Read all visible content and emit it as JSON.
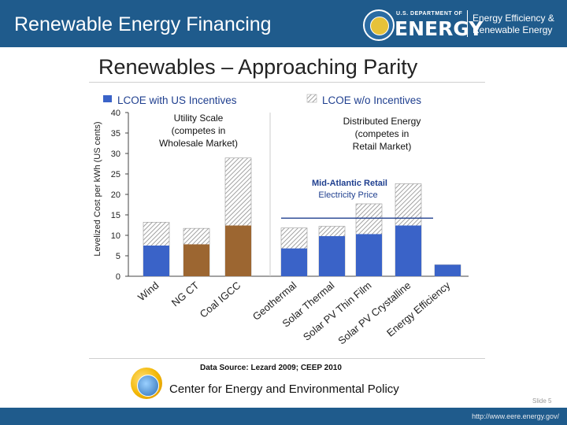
{
  "header": {
    "title": "Renewable Energy Financing",
    "doe_small": "U.S. DEPARTMENT OF",
    "doe_big": "ENERGY",
    "eere_line1": "Energy Efficiency &",
    "eere_line2": "Renewable Energy"
  },
  "slide": {
    "title": "Renewables – Approaching Parity",
    "source": "Data Source: Lezard 2009; CEEP 2010",
    "center": "Center for Energy and Environmental Policy",
    "slide_number": "Slide 5"
  },
  "footer": {
    "url": "http://www.eere.energy.gov/"
  },
  "colors": {
    "header_bg": "#1f5b8c",
    "blue": "#3a63c8",
    "brown": "#9c6631",
    "hatch": "#8a8a8a"
  },
  "chart_data": {
    "type": "bar",
    "ylabel": "Levelized Cost per kWh (US cents)",
    "ylim": [
      0,
      40
    ],
    "yticks": [
      0,
      5,
      10,
      15,
      20,
      25,
      30,
      35,
      40
    ],
    "legend": [
      {
        "name": "LCOE with US Incentives",
        "style": "solid"
      },
      {
        "name": "LCOE w/o Incentives",
        "style": "hatched"
      }
    ],
    "categories": [
      "Wind",
      "NG CT",
      "Coal IGCC",
      "Geothermal",
      "Solar Thermal",
      "Solar PV Thin Film",
      "Solar PV Crystalline",
      "Energy Efficiency"
    ],
    "series": [
      {
        "name": "LCOE with US Incentives",
        "values": [
          7.5,
          7.8,
          12.4,
          6.8,
          9.8,
          10.3,
          12.4,
          2.8
        ]
      },
      {
        "name": "LCOE w/o Incentives",
        "values": [
          13.2,
          11.7,
          28.9,
          11.8,
          12.2,
          17.7,
          22.6,
          2.8
        ]
      }
    ],
    "groups": [
      {
        "label": "Utility Scale\n(competes in\nWholesale Market)",
        "categories": [
          "Wind",
          "NG CT",
          "Coal IGCC"
        ]
      },
      {
        "label": "Distributed Energy\n(competes in\nRetail Market)",
        "categories": [
          "Geothermal",
          "Solar Thermal",
          "Solar PV Thin Film",
          "Solar PV Crystalline",
          "Energy Efficiency"
        ]
      }
    ],
    "annotation": {
      "line1": "Mid-Atlantic Retail",
      "line2": "Electricity Price",
      "value": 14.2
    }
  }
}
